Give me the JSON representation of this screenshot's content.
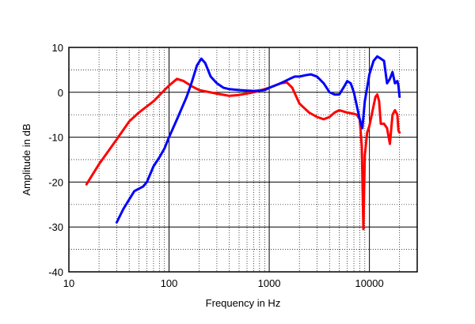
{
  "chart_data": {
    "type": "line",
    "xlabel": "Frequency in Hz",
    "ylabel": "Amplitude in dB",
    "x_scale": "log",
    "xlim": [
      10,
      30000
    ],
    "ylim": [
      -40,
      10
    ],
    "x_ticks": [
      {
        "value": 10,
        "label": "10"
      },
      {
        "value": 100,
        "label": "100"
      },
      {
        "value": 1000,
        "label": "1000"
      },
      {
        "value": 10000,
        "label": "10000"
      }
    ],
    "y_ticks": [
      {
        "value": 10,
        "label": "10"
      },
      {
        "value": 0,
        "label": "0"
      },
      {
        "value": -10,
        "label": "-10"
      },
      {
        "value": -20,
        "label": "-20"
      },
      {
        "value": -30,
        "label": "-30"
      },
      {
        "value": -40,
        "label": "-40"
      }
    ],
    "grid": true,
    "series": [
      {
        "color": "#ff0000",
        "points": [
          [
            15,
            -20.5
          ],
          [
            20,
            -16
          ],
          [
            30,
            -10.5
          ],
          [
            40,
            -6.5
          ],
          [
            50,
            -4.5
          ],
          [
            70,
            -2
          ],
          [
            90,
            0.5
          ],
          [
            100,
            1.5
          ],
          [
            120,
            3
          ],
          [
            140,
            2.5
          ],
          [
            170,
            1.3
          ],
          [
            200,
            0.5
          ],
          [
            300,
            -0.3
          ],
          [
            400,
            -0.8
          ],
          [
            500,
            -0.6
          ],
          [
            700,
            0
          ],
          [
            1000,
            1
          ],
          [
            1300,
            2
          ],
          [
            1500,
            2.2
          ],
          [
            1700,
            1
          ],
          [
            2000,
            -2.5
          ],
          [
            2500,
            -4.5
          ],
          [
            3000,
            -5.5
          ],
          [
            3500,
            -6
          ],
          [
            4000,
            -5.5
          ],
          [
            4500,
            -4.5
          ],
          [
            5000,
            -4
          ],
          [
            6000,
            -4.5
          ],
          [
            7000,
            -4.8
          ],
          [
            7500,
            -5
          ],
          [
            8000,
            -6
          ],
          [
            8400,
            -12
          ],
          [
            8700,
            -30.5
          ],
          [
            9000,
            -14
          ],
          [
            9500,
            -9
          ],
          [
            10000,
            -7.5
          ],
          [
            11000,
            -3
          ],
          [
            11500,
            -1
          ],
          [
            12000,
            -0.5
          ],
          [
            12500,
            -2
          ],
          [
            13000,
            -7
          ],
          [
            14000,
            -7
          ],
          [
            15000,
            -8
          ],
          [
            16000,
            -11.5
          ],
          [
            17000,
            -5
          ],
          [
            18000,
            -4
          ],
          [
            19000,
            -5
          ],
          [
            19500,
            -8.5
          ],
          [
            20000,
            -9
          ]
        ]
      },
      {
        "color": "#0000ff",
        "points": [
          [
            30,
            -29
          ],
          [
            35,
            -26
          ],
          [
            45,
            -22
          ],
          [
            55,
            -21
          ],
          [
            60,
            -20
          ],
          [
            70,
            -16.5
          ],
          [
            80,
            -14.5
          ],
          [
            90,
            -12.5
          ],
          [
            100,
            -10
          ],
          [
            120,
            -6
          ],
          [
            150,
            -1
          ],
          [
            170,
            2.5
          ],
          [
            190,
            6
          ],
          [
            210,
            7.5
          ],
          [
            230,
            6.5
          ],
          [
            260,
            3.5
          ],
          [
            300,
            2
          ],
          [
            350,
            1
          ],
          [
            400,
            0.7
          ],
          [
            500,
            0.5
          ],
          [
            700,
            0.3
          ],
          [
            900,
            0.5
          ],
          [
            1000,
            1
          ],
          [
            1300,
            2
          ],
          [
            1600,
            3
          ],
          [
            1800,
            3.5
          ],
          [
            2000,
            3.5
          ],
          [
            2300,
            3.8
          ],
          [
            2600,
            4
          ],
          [
            3000,
            3.5
          ],
          [
            3500,
            2
          ],
          [
            4000,
            0
          ],
          [
            4500,
            -0.5
          ],
          [
            5000,
            -0.5
          ],
          [
            5500,
            1
          ],
          [
            6000,
            2.5
          ],
          [
            6500,
            2
          ],
          [
            7000,
            0
          ],
          [
            8000,
            -6
          ],
          [
            8500,
            -8
          ],
          [
            9000,
            -2
          ],
          [
            10000,
            4
          ],
          [
            11000,
            7
          ],
          [
            12000,
            8
          ],
          [
            13000,
            7.5
          ],
          [
            14000,
            7
          ],
          [
            15000,
            2
          ],
          [
            16000,
            3
          ],
          [
            17000,
            4.5
          ],
          [
            18000,
            2
          ],
          [
            19000,
            2.5
          ],
          [
            19500,
            1.5
          ],
          [
            20000,
            -1
          ]
        ]
      }
    ]
  }
}
